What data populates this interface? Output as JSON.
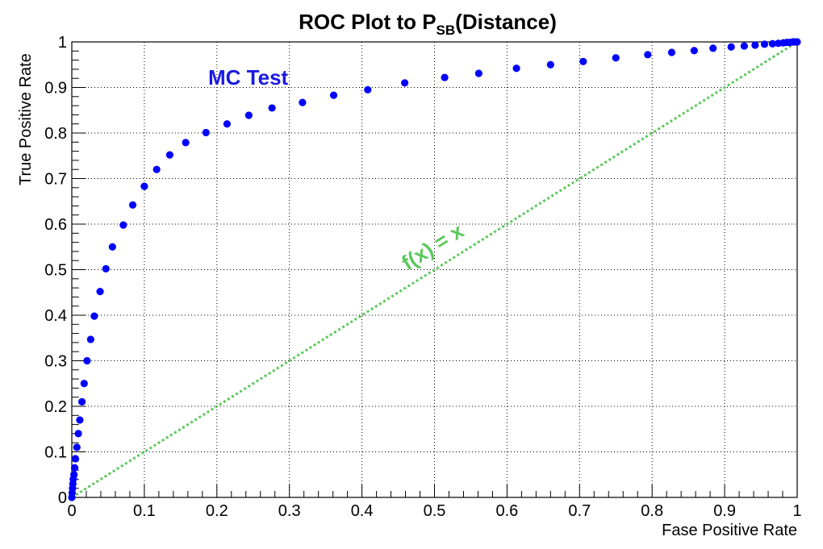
{
  "chart_data": {
    "type": "scatter",
    "title_main": "ROC Plot to P",
    "title_sub": "SB",
    "title_end": "(Distance)",
    "xlabel": "Fase Positive Rate",
    "ylabel": "True Positive Rate",
    "xlim": [
      0,
      1
    ],
    "ylim": [
      0,
      1
    ],
    "grid": true,
    "x_ticks": [
      "0",
      "0.1",
      "0.2",
      "0.3",
      "0.4",
      "0.5",
      "0.6",
      "0.7",
      "0.8",
      "0.9",
      "1"
    ],
    "y_ticks": [
      "0",
      "0.1",
      "0.2",
      "0.3",
      "0.4",
      "0.5",
      "0.6",
      "0.7",
      "0.8",
      "0.9",
      "1"
    ],
    "series": [
      {
        "name": "MC Test",
        "color": "#0000ff",
        "x": [
          0.0,
          0.0005,
          0.001,
          0.0015,
          0.002,
          0.003,
          0.004,
          0.005,
          0.007,
          0.009,
          0.011,
          0.014,
          0.017,
          0.021,
          0.026,
          0.031,
          0.039,
          0.047,
          0.056,
          0.071,
          0.084,
          0.1,
          0.117,
          0.135,
          0.157,
          0.185,
          0.214,
          0.244,
          0.276,
          0.318,
          0.361,
          0.408,
          0.459,
          0.514,
          0.561,
          0.613,
          0.66,
          0.705,
          0.75,
          0.794,
          0.827,
          0.858,
          0.884,
          0.909,
          0.927,
          0.942,
          0.955,
          0.966,
          0.974,
          0.981,
          0.986,
          0.99,
          0.994,
          0.997,
          1.0
        ],
        "y": [
          0.0,
          0.01,
          0.02,
          0.03,
          0.04,
          0.05,
          0.065,
          0.085,
          0.11,
          0.14,
          0.17,
          0.21,
          0.25,
          0.3,
          0.347,
          0.398,
          0.452,
          0.502,
          0.55,
          0.598,
          0.642,
          0.683,
          0.72,
          0.752,
          0.779,
          0.801,
          0.82,
          0.839,
          0.855,
          0.867,
          0.883,
          0.895,
          0.91,
          0.922,
          0.931,
          0.942,
          0.95,
          0.957,
          0.965,
          0.972,
          0.977,
          0.981,
          0.986,
          0.989,
          0.991,
          0.993,
          0.995,
          0.996,
          0.997,
          0.998,
          0.999,
          0.999,
          1.0,
          1.0,
          1.0
        ]
      }
    ],
    "reference_line": {
      "label": "f(x) = x",
      "color": "#5bc85b",
      "x": [
        0,
        1
      ],
      "y": [
        0,
        1
      ]
    },
    "annotations": [
      {
        "text": "MC Test",
        "color": "#1a1ae0"
      },
      {
        "text": "f(x) = x",
        "color": "#5bc85b"
      }
    ]
  }
}
